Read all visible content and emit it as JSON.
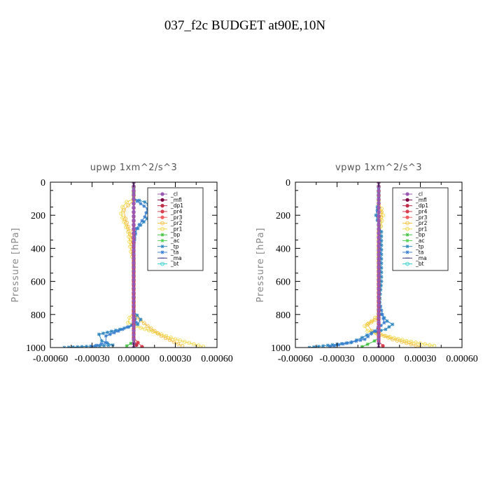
{
  "figure_title": "037_f2c  BUDGET at90E,10N",
  "colors": {
    "_cl": "#9b59b6",
    "_mfl": "#7b0040",
    "_dp1": "#c0304a",
    "_pr4": "#d94050",
    "_pr3": "#f06060",
    "_pr2": "#f5c040",
    "_pr1": "#f2d84a",
    "_bp": "#40c040",
    "_ac": "#50d050",
    "_tp": "#2f88c0",
    "_ta": "#3a7fd0",
    "_ma": "#404080",
    "_bt": "#30d0d0"
  },
  "chart_data": [
    {
      "type": "line",
      "title": "upwp    1xm^2/s^3",
      "ylabel": "Pressure [hPa]",
      "xlim": [
        -0.0006,
        0.0006
      ],
      "ylim": [
        1000,
        0
      ],
      "x_ticks": [
        "-0.00060",
        "-0.00030",
        "0.00000",
        "0.00030",
        "0.00060"
      ],
      "y_ticks": [
        "0",
        "200",
        "400",
        "600",
        "800",
        "1000"
      ],
      "legend": [
        "_cl",
        "_mfl",
        "_dp1",
        "_pr4",
        "_pr3",
        "_pr2",
        "_pr1",
        "_bp",
        "_ac",
        "_tp",
        "_ta",
        "_ma",
        "_bt"
      ],
      "legend_position": "top-right",
      "series": [
        {
          "name": "_pr1",
          "points": [
            [
              0,
              0
            ],
            [
              0,
              100
            ],
            [
              -5e-05,
              120
            ],
            [
              -8e-05,
              150
            ],
            [
              -9e-05,
              190
            ],
            [
              -7e-05,
              240
            ],
            [
              -4e-05,
              300
            ],
            [
              -3e-05,
              360
            ],
            [
              -2e-05,
              420
            ],
            [
              0,
              480
            ],
            [
              0,
              780
            ],
            [
              -3e-05,
              820
            ],
            [
              -4e-05,
              850
            ],
            [
              5e-05,
              880
            ],
            [
              0.0002,
              920
            ],
            [
              0.0003,
              950
            ],
            [
              0.0005,
              995
            ]
          ]
        },
        {
          "name": "_pr2",
          "points": [
            [
              0,
              0
            ],
            [
              0,
              110
            ],
            [
              -4e-05,
              140
            ],
            [
              -7e-05,
              170
            ],
            [
              -6e-05,
              220
            ],
            [
              -2e-05,
              320
            ],
            [
              0,
              460
            ],
            [
              0,
              800
            ],
            [
              0.0001,
              870
            ],
            [
              0.0002,
              930
            ],
            [
              0.00035,
              990
            ]
          ]
        },
        {
          "name": "_tp",
          "points": [
            [
              0,
              0
            ],
            [
              0,
              100
            ],
            [
              8e-05,
              120
            ],
            [
              0.00013,
              150
            ],
            [
              0.00012,
              200
            ],
            [
              5e-05,
              260
            ],
            [
              1e-05,
              300
            ],
            [
              0,
              400
            ],
            [
              0,
              780
            ],
            [
              5e-05,
              830
            ],
            [
              3e-05,
              860
            ],
            [
              -0.0001,
              890
            ],
            [
              -0.00025,
              920
            ],
            [
              -0.00023,
              960
            ],
            [
              -0.00015,
              985
            ],
            [
              -0.0005,
              1000
            ]
          ]
        },
        {
          "name": "_ta",
          "points": [
            [
              0,
              0
            ],
            [
              0,
              100
            ],
            [
              5e-05,
              130
            ],
            [
              0.0001,
              160
            ],
            [
              8e-05,
              210
            ],
            [
              2e-05,
              280
            ],
            [
              0,
              380
            ],
            [
              0,
              800
            ],
            [
              2e-05,
              850
            ],
            [
              -8e-05,
              890
            ],
            [
              -0.0002,
              930
            ],
            [
              -0.0002,
              970
            ],
            [
              -0.0003,
              995
            ]
          ]
        },
        {
          "name": "_bp",
          "points": [
            [
              0,
              0
            ],
            [
              0,
              960
            ],
            [
              -2e-05,
              975
            ],
            [
              -5e-05,
              990
            ]
          ]
        },
        {
          "name": "_pr4",
          "points": [
            [
              0,
              0
            ],
            [
              0,
              940
            ],
            [
              3e-05,
              970
            ],
            [
              6e-05,
              995
            ]
          ]
        },
        {
          "name": "_dp1",
          "points": [
            [
              0,
              0
            ],
            [
              0,
              950
            ],
            [
              2e-05,
              985
            ]
          ]
        },
        {
          "name": "_mfl",
          "points": [
            [
              0,
              0
            ],
            [
              0,
              1000
            ]
          ]
        },
        {
          "name": "_cl",
          "points": [
            [
              0,
              0
            ],
            [
              0,
              1000
            ]
          ]
        }
      ]
    },
    {
      "type": "line",
      "title": "vpwp    1xm^2/s^3",
      "ylabel": "Pressure [hPa]",
      "xlim": [
        -0.0006,
        0.0006
      ],
      "ylim": [
        1000,
        0
      ],
      "x_ticks": [
        "-0.00060",
        "-0.00030",
        "0.00000",
        "0.00030",
        "0.00060"
      ],
      "y_ticks": [
        "0",
        "200",
        "400",
        "600",
        "800",
        "1000"
      ],
      "legend": [
        "_cl",
        "_mfl",
        "_dp1",
        "_pr4",
        "_pr3",
        "_pr2",
        "_pr1",
        "_bp",
        "_ac",
        "_tp",
        "_ta",
        "_ma",
        "_bt"
      ],
      "legend_position": "top-right",
      "series": [
        {
          "name": "_pr1",
          "points": [
            [
              0,
              0
            ],
            [
              0,
              130
            ],
            [
              2e-05,
              160
            ],
            [
              3e-05,
              200
            ],
            [
              1e-05,
              300
            ],
            [
              0,
              400
            ],
            [
              0,
              800
            ],
            [
              -5e-05,
              840
            ],
            [
              -0.0001,
              870
            ],
            [
              -8e-05,
              900
            ],
            [
              5e-05,
              930
            ],
            [
              0.0002,
              960
            ],
            [
              0.0004,
              990
            ]
          ]
        },
        {
          "name": "_pr2",
          "points": [
            [
              0,
              0
            ],
            [
              0,
              140
            ],
            [
              2e-05,
              180
            ],
            [
              0,
              300
            ],
            [
              0,
              820
            ],
            [
              -8e-05,
              860
            ],
            [
              -5e-05,
              900
            ],
            [
              0.0001,
              950
            ],
            [
              0.0003,
              995
            ]
          ]
        },
        {
          "name": "_tp",
          "points": [
            [
              0,
              0
            ],
            [
              0,
              100
            ],
            [
              -1e-05,
              150
            ],
            [
              -2e-05,
              200
            ],
            [
              0,
              260
            ],
            [
              2e-05,
              300
            ],
            [
              2e-05,
              600
            ],
            [
              0,
              780
            ],
            [
              6e-05,
              840
            ],
            [
              0.0001,
              860
            ],
            [
              5e-05,
              890
            ],
            [
              -5e-05,
              910
            ],
            [
              -0.00012,
              940
            ],
            [
              -0.0002,
              970
            ],
            [
              -0.0005,
              1000
            ]
          ]
        },
        {
          "name": "_ta",
          "points": [
            [
              0,
              0
            ],
            [
              0,
              120
            ],
            [
              -1e-05,
              170
            ],
            [
              0,
              240
            ],
            [
              1e-05,
              400
            ],
            [
              0,
              700
            ],
            [
              4e-05,
              850
            ],
            [
              -3e-05,
              900
            ],
            [
              -0.0001,
              950
            ],
            [
              -0.00035,
              995
            ]
          ]
        },
        {
          "name": "_bp",
          "points": [
            [
              0,
              0
            ],
            [
              0,
              940
            ],
            [
              -3e-05,
              960
            ],
            [
              -8e-05,
              980
            ],
            [
              -0.00012,
              995
            ]
          ]
        },
        {
          "name": "_pr4",
          "points": [
            [
              0,
              0
            ],
            [
              0,
              960
            ],
            [
              3e-05,
              990
            ]
          ]
        },
        {
          "name": "_mfl",
          "points": [
            [
              0,
              0
            ],
            [
              0,
              1000
            ]
          ]
        },
        {
          "name": "_cl",
          "points": [
            [
              0,
              0
            ],
            [
              0,
              1000
            ]
          ]
        }
      ]
    }
  ]
}
